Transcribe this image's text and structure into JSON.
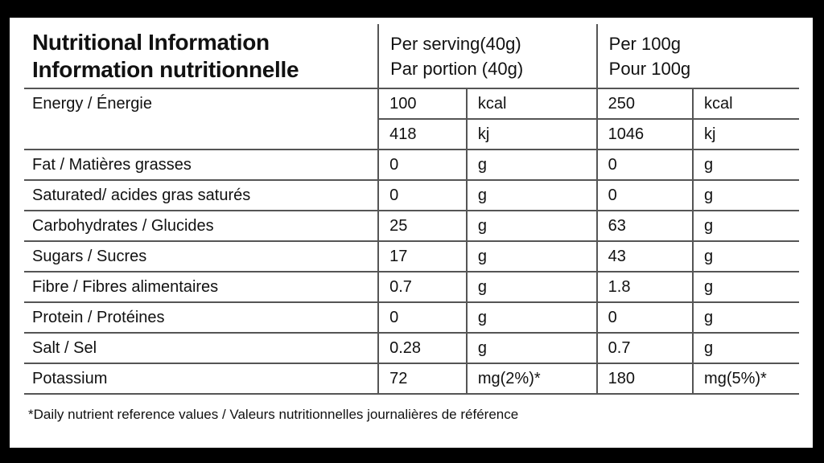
{
  "page": {
    "background_color": "#000000",
    "panel_color": "#ffffff",
    "line_color": "#555555",
    "text_color": "#111111"
  },
  "table": {
    "title_line1": "Nutritional Information",
    "title_line2": "Information nutritionnelle",
    "col_headers": {
      "per_serving_line1": "Per serving(40g)",
      "per_serving_line2": "Par portion (40g)",
      "per_100g_line1": "Per 100g",
      "per_100g_line2": "Pour 100g"
    },
    "rows": [
      {
        "label": "Energy / Énergie",
        "serving_value": "100",
        "serving_unit": "kcal",
        "per100_value": "250",
        "per100_unit": "kcal"
      },
      {
        "label": "",
        "serving_value": "418",
        "serving_unit": "kj",
        "per100_value": "1046",
        "per100_unit": "kj"
      },
      {
        "label": "Fat / Matières grasses",
        "serving_value": "0",
        "serving_unit": "g",
        "per100_value": "0",
        "per100_unit": "g"
      },
      {
        "label": "Saturated/ acides gras saturés",
        "serving_value": "0",
        "serving_unit": "g",
        "per100_value": "0",
        "per100_unit": "g"
      },
      {
        "label": "Carbohydrates / Glucides",
        "serving_value": "25",
        "serving_unit": "g",
        "per100_value": "63",
        "per100_unit": "g"
      },
      {
        "label": "Sugars / Sucres",
        "serving_value": "17",
        "serving_unit": "g",
        "per100_value": "43",
        "per100_unit": "g"
      },
      {
        "label": "Fibre / Fibres alimentaires",
        "serving_value": "0.7",
        "serving_unit": "g",
        "per100_value": "1.8",
        "per100_unit": "g"
      },
      {
        "label": "Protein / Protéines",
        "serving_value": "0",
        "serving_unit": "g",
        "per100_value": "0",
        "per100_unit": "g"
      },
      {
        "label": "Salt / Sel",
        "serving_value": "0.28",
        "serving_unit": "g",
        "per100_value": "0.7",
        "per100_unit": "g"
      },
      {
        "label": "Potassium",
        "serving_value": "72",
        "serving_unit": "mg(2%)*",
        "per100_value": "180",
        "per100_unit": "mg(5%)*"
      }
    ],
    "footnote": "*Daily nutrient reference values / Valeurs nutritionnelles journalières de référence"
  }
}
